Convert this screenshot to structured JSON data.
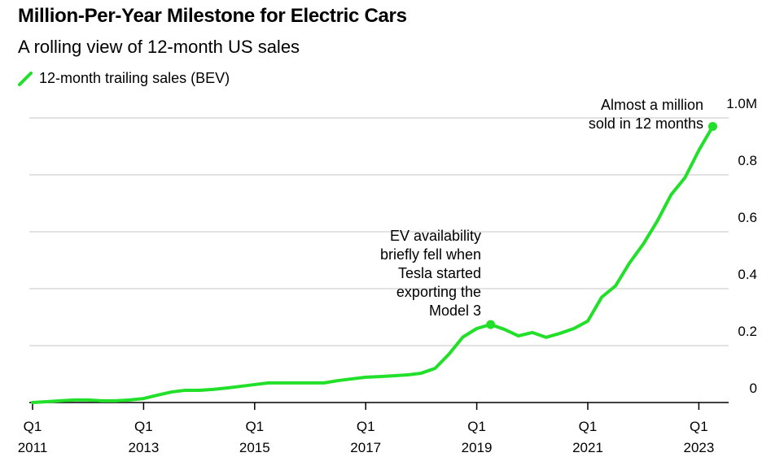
{
  "chart_data": {
    "type": "line",
    "title": "Million-Per-Year Milestone for Electric Cars",
    "subtitle": "A rolling view of 12-month US sales",
    "legend": [
      {
        "label": "12-month trailing sales (BEV)",
        "color": "#22e02a"
      }
    ],
    "legend_placement": "top-left",
    "xlabel": "",
    "ylabel": "",
    "ylim": [
      0,
      1.0
    ],
    "xlim": [
      2011,
      2024.2
    ],
    "grid": true,
    "yticks": [
      {
        "value": 0,
        "label": "0"
      },
      {
        "value": 0.2,
        "label": "0.2"
      },
      {
        "value": 0.4,
        "label": "0.4"
      },
      {
        "value": 0.6,
        "label": "0.6"
      },
      {
        "value": 0.8,
        "label": "0.8"
      },
      {
        "value": 1.0,
        "label": "1.0M"
      }
    ],
    "xticks": [
      {
        "value": 2011,
        "q": "Q1",
        "year": "2011"
      },
      {
        "value": 2013,
        "q": "Q1",
        "year": "2013"
      },
      {
        "value": 2015,
        "q": "Q1",
        "year": "2015"
      },
      {
        "value": 2017,
        "q": "Q1",
        "year": "2017"
      },
      {
        "value": 2019,
        "q": "Q1",
        "year": "2019"
      },
      {
        "value": 2021,
        "q": "Q1",
        "year": "2021"
      },
      {
        "value": 2023,
        "q": "Q1",
        "year": "2023"
      }
    ],
    "series": [
      {
        "name": "12-month trailing sales (BEV)",
        "start": 2011,
        "step": 0.25,
        "values": [
          0,
          0.003,
          0.006,
          0.009,
          0.009,
          0.006,
          0.006,
          0.009,
          0.014,
          0.026,
          0.037,
          0.043,
          0.043,
          0.046,
          0.051,
          0.057,
          0.063,
          0.069,
          0.069,
          0.069,
          0.069,
          0.069,
          0.077,
          0.083,
          0.089,
          0.091,
          0.094,
          0.097,
          0.103,
          0.12,
          0.17,
          0.23,
          0.26,
          0.274,
          0.257,
          0.234,
          0.246,
          0.229,
          0.243,
          0.26,
          0.286,
          0.37,
          0.41,
          0.49,
          0.557,
          0.637,
          0.73,
          0.79,
          0.886,
          0.97
        ]
      }
    ],
    "annotations": [
      {
        "x": 2019.25,
        "y": 0.274,
        "lines": [
          "EV availability",
          "briefly fell when",
          "Tesla started",
          "exporting the",
          "Model 3"
        ]
      },
      {
        "x": 2023.25,
        "y": 0.97,
        "lines": [
          "Almost a million",
          "sold in 12 months"
        ]
      }
    ]
  }
}
